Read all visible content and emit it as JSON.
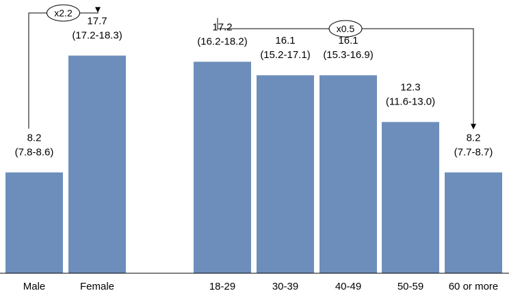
{
  "chart_data": {
    "type": "bar",
    "categories": [
      "Male",
      "Female",
      "18-29",
      "30-39",
      "40-49",
      "50-59",
      "60 or more"
    ],
    "values": [
      8.2,
      17.7,
      17.2,
      16.1,
      16.1,
      12.3,
      8.2
    ],
    "value_labels": [
      "8.2",
      "17.7",
      "17.2",
      "16.1",
      "16.1",
      "12.3",
      "8.2"
    ],
    "ci_labels": [
      "(7.8-8.6)",
      "(17.2-18.3)",
      "(16.2-18.2)",
      "(15.2-17.1)",
      "(15.3-16.9)",
      "(11.6-13.0)",
      "(7.7-8.7)"
    ],
    "groups": [
      {
        "categories": [
          "Male",
          "Female"
        ]
      },
      {
        "categories": [
          "18-29",
          "30-39",
          "40-49",
          "50-59",
          "60 or more"
        ]
      }
    ],
    "comparisons": [
      {
        "from": "Male",
        "to": "Female",
        "label": "x2.2"
      },
      {
        "from": "18-29",
        "to": "60 or more",
        "label": "x0.5"
      }
    ],
    "bar_color": "#6d8ebb",
    "title": "",
    "xlabel": "",
    "ylabel": "",
    "ylim": [
      0,
      22
    ],
    "grid": false,
    "legend": "none"
  }
}
